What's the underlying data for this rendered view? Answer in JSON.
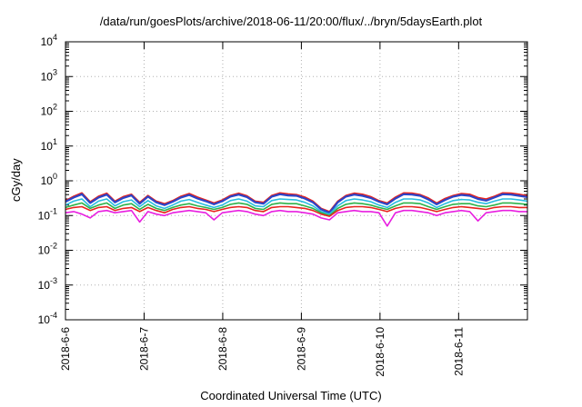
{
  "chart_data": {
    "type": "line",
    "title": "/data/run/goesPlots/archive/2018-06-11/20:00/flux/../bryn/5daysEarth.plot",
    "xlabel": "Coordinated Universal Time (UTC)",
    "ylabel": "cGy/day",
    "yscale": "log",
    "ylim": [
      0.0001,
      10000
    ],
    "y_ticks": [
      {
        "value": 0.0001,
        "base": "10",
        "exp": "-4"
      },
      {
        "value": 0.001,
        "base": "10",
        "exp": "-3"
      },
      {
        "value": 0.01,
        "base": "10",
        "exp": "-2"
      },
      {
        "value": 0.1,
        "base": "10",
        "exp": "-1"
      },
      {
        "value": 1,
        "base": "10",
        "exp": "0"
      },
      {
        "value": 10,
        "base": "10",
        "exp": "1"
      },
      {
        "value": 100,
        "base": "10",
        "exp": "2"
      },
      {
        "value": 1000,
        "base": "10",
        "exp": "3"
      },
      {
        "value": 10000,
        "base": "10",
        "exp": "4"
      }
    ],
    "x_range": [
      "2018-06-06 00:00",
      "2018-06-11 21:00"
    ],
    "x_ticks": [
      "2018-6-6",
      "2018-6-7",
      "2018-6-8",
      "2018-6-9",
      "2018-6-10",
      "2018-6-11"
    ],
    "grid": true,
    "series": [
      {
        "color": "#e8231e",
        "values": [
          0.27,
          0.36,
          0.45,
          0.25,
          0.36,
          0.44,
          0.26,
          0.35,
          0.41,
          0.24,
          0.38,
          0.26,
          0.22,
          0.27,
          0.36,
          0.43,
          0.34,
          0.28,
          0.23,
          0.28,
          0.38,
          0.44,
          0.37,
          0.26,
          0.24,
          0.38,
          0.45,
          0.42,
          0.4,
          0.34,
          0.26,
          0.16,
          0.13,
          0.26,
          0.38,
          0.44,
          0.41,
          0.35,
          0.27,
          0.23,
          0.34,
          0.45,
          0.44,
          0.4,
          0.32,
          0.23,
          0.31,
          0.38,
          0.43,
          0.41,
          0.33,
          0.3,
          0.36,
          0.45,
          0.44,
          0.41,
          0.37
        ]
      },
      {
        "color": "#2b44c8",
        "values": [
          0.25,
          0.33,
          0.41,
          0.23,
          0.33,
          0.4,
          0.24,
          0.32,
          0.38,
          0.22,
          0.35,
          0.24,
          0.2,
          0.25,
          0.33,
          0.39,
          0.31,
          0.26,
          0.21,
          0.26,
          0.35,
          0.4,
          0.34,
          0.24,
          0.22,
          0.35,
          0.41,
          0.38,
          0.37,
          0.31,
          0.24,
          0.15,
          0.12,
          0.24,
          0.35,
          0.4,
          0.37,
          0.32,
          0.25,
          0.21,
          0.31,
          0.41,
          0.4,
          0.37,
          0.29,
          0.21,
          0.28,
          0.35,
          0.39,
          0.37,
          0.3,
          0.27,
          0.33,
          0.41,
          0.4,
          0.37,
          0.34
        ]
      },
      {
        "color": "#29bce0",
        "values": [
          0.2,
          0.26,
          0.3,
          0.18,
          0.26,
          0.3,
          0.19,
          0.25,
          0.28,
          0.18,
          0.27,
          0.19,
          0.16,
          0.2,
          0.26,
          0.29,
          0.24,
          0.2,
          0.17,
          0.2,
          0.27,
          0.3,
          0.26,
          0.19,
          0.18,
          0.27,
          0.3,
          0.29,
          0.28,
          0.24,
          0.19,
          0.13,
          0.11,
          0.19,
          0.27,
          0.3,
          0.28,
          0.25,
          0.2,
          0.17,
          0.24,
          0.3,
          0.3,
          0.28,
          0.23,
          0.17,
          0.22,
          0.27,
          0.29,
          0.28,
          0.24,
          0.22,
          0.26,
          0.3,
          0.3,
          0.28,
          0.26
        ]
      },
      {
        "color": "#2db34a",
        "values": [
          0.17,
          0.2,
          0.23,
          0.16,
          0.2,
          0.23,
          0.16,
          0.2,
          0.22,
          0.15,
          0.21,
          0.16,
          0.14,
          0.17,
          0.2,
          0.22,
          0.19,
          0.17,
          0.15,
          0.17,
          0.21,
          0.23,
          0.21,
          0.16,
          0.15,
          0.21,
          0.23,
          0.22,
          0.22,
          0.19,
          0.16,
          0.12,
          0.1,
          0.16,
          0.21,
          0.23,
          0.22,
          0.2,
          0.17,
          0.15,
          0.19,
          0.23,
          0.23,
          0.22,
          0.18,
          0.15,
          0.18,
          0.21,
          0.22,
          0.22,
          0.19,
          0.18,
          0.2,
          0.23,
          0.23,
          0.22,
          0.21
        ]
      },
      {
        "color": "#e8231e",
        "values": [
          0.15,
          0.17,
          0.18,
          0.14,
          0.17,
          0.18,
          0.14,
          0.16,
          0.17,
          0.13,
          0.17,
          0.14,
          0.12,
          0.15,
          0.17,
          0.18,
          0.16,
          0.15,
          0.13,
          0.15,
          0.17,
          0.18,
          0.17,
          0.14,
          0.13,
          0.17,
          0.18,
          0.18,
          0.17,
          0.16,
          0.14,
          0.11,
          0.095,
          0.14,
          0.17,
          0.18,
          0.18,
          0.17,
          0.15,
          0.13,
          0.16,
          0.18,
          0.18,
          0.17,
          0.15,
          0.13,
          0.15,
          0.17,
          0.18,
          0.17,
          0.16,
          0.15,
          0.17,
          0.18,
          0.18,
          0.17,
          0.17
        ]
      },
      {
        "color": "#e81ee0",
        "values": [
          0.12,
          0.13,
          0.11,
          0.085,
          0.13,
          0.14,
          0.12,
          0.13,
          0.14,
          0.065,
          0.13,
          0.11,
          0.1,
          0.12,
          0.13,
          0.14,
          0.13,
          0.12,
          0.075,
          0.12,
          0.13,
          0.14,
          0.13,
          0.11,
          0.1,
          0.13,
          0.14,
          0.13,
          0.13,
          0.12,
          0.11,
          0.085,
          0.075,
          0.12,
          0.13,
          0.14,
          0.13,
          0.13,
          0.12,
          0.05,
          0.12,
          0.14,
          0.14,
          0.13,
          0.12,
          0.1,
          0.12,
          0.13,
          0.14,
          0.13,
          0.07,
          0.12,
          0.13,
          0.14,
          0.14,
          0.13,
          0.13
        ]
      }
    ]
  }
}
